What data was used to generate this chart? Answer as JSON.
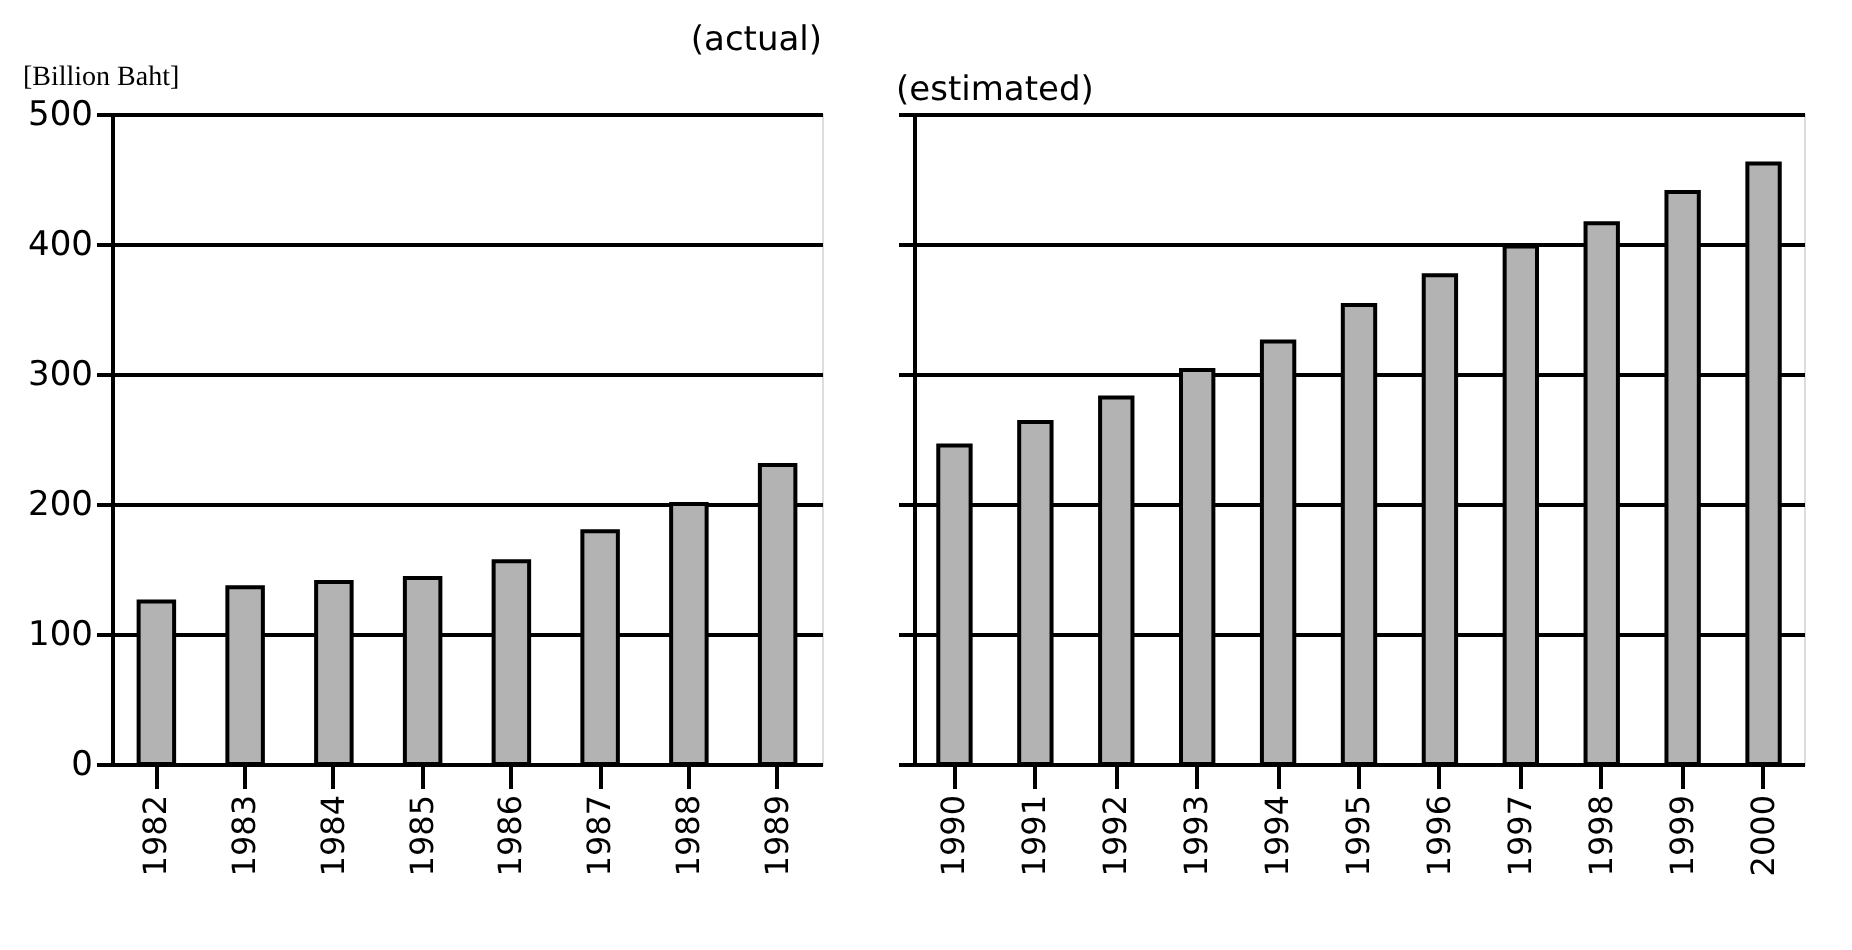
{
  "chart_data": [
    {
      "type": "bar",
      "title": "(actual)",
      "ylabel": "[Billion Baht]",
      "categories": [
        "1982",
        "1983",
        "1984",
        "1985",
        "1986",
        "1987",
        "1988",
        "1989"
      ],
      "values": [
        125,
        136,
        140,
        143,
        156,
        179,
        200,
        230
      ],
      "color": "#b3b3b3",
      "ylim": [
        0,
        500
      ],
      "yticks": [
        0,
        100,
        200,
        300,
        400,
        500
      ],
      "grid": "y"
    },
    {
      "type": "bar",
      "title": "(estimated)",
      "categories": [
        "1990",
        "1991",
        "1992",
        "1993",
        "1994",
        "1995",
        "1996",
        "1997",
        "1998",
        "1999",
        "2000"
      ],
      "values": [
        245,
        263,
        282,
        303,
        325,
        353,
        376,
        398,
        416,
        440,
        462
      ],
      "color": "#b3b3b3",
      "ylim": [
        0,
        500
      ],
      "yticks": [
        0,
        100,
        200,
        300,
        400,
        500
      ],
      "grid": "y",
      "tick_labels": "x"
    }
  ]
}
